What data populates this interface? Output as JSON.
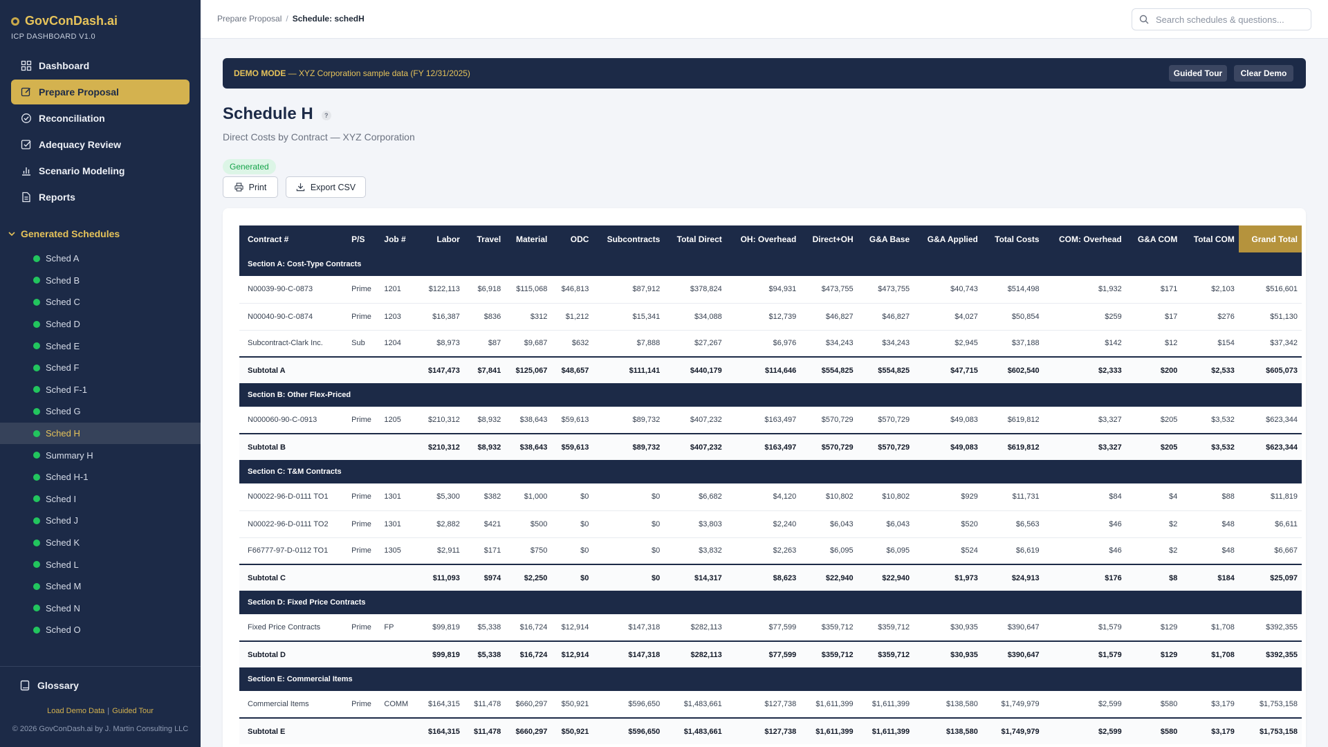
{
  "brand": {
    "name": "GovConDash.ai",
    "subtitle": "ICP DASHBOARD V1.0"
  },
  "nav": [
    {
      "label": "Dashboard",
      "icon": "grid-icon",
      "active": false
    },
    {
      "label": "Prepare Proposal",
      "icon": "edit-icon",
      "active": true
    },
    {
      "label": "Reconciliation",
      "icon": "check-circle-icon",
      "active": false
    },
    {
      "label": "Adequacy Review",
      "icon": "check-square-icon",
      "active": false
    },
    {
      "label": "Scenario Modeling",
      "icon": "bar-chart-icon",
      "active": false
    },
    {
      "label": "Reports",
      "icon": "document-icon",
      "active": false
    }
  ],
  "generated": {
    "heading": "Generated Schedules",
    "items": [
      "Sched A",
      "Sched B",
      "Sched C",
      "Sched D",
      "Sched E",
      "Sched F",
      "Sched F-1",
      "Sched G",
      "Sched H",
      "Summary H",
      "Sched H-1",
      "Sched I",
      "Sched J",
      "Sched K",
      "Sched L",
      "Sched M",
      "Sched N",
      "Sched O"
    ],
    "active_index": 8
  },
  "sidebar_bottom": {
    "glossary": "Glossary",
    "load_demo": "Load Demo Data",
    "guided_tour": "Guided Tour",
    "copyright": "© 2026 GovConDash.ai by J. Martin Consulting LLC"
  },
  "breadcrumb": {
    "parent": "Prepare Proposal",
    "current": "Schedule: schedH"
  },
  "search": {
    "placeholder": "Search schedules & questions..."
  },
  "banner": {
    "mode": "DEMO MODE",
    "text": " — XYZ Corporation sample data (FY 12/31/2025)",
    "tour_btn": "Guided Tour",
    "clear_btn": "Clear Demo"
  },
  "page": {
    "title": "Schedule H",
    "help": "?",
    "subtitle": "Direct Costs by Contract — XYZ Corporation",
    "status": "Generated",
    "print": "Print",
    "export": "Export CSV"
  },
  "table": {
    "columns": [
      "Contract #",
      "P/S",
      "Job #",
      "Labor",
      "Travel",
      "Material",
      "ODC",
      "Subcontracts",
      "Total Direct",
      "OH: Overhead",
      "Direct+OH",
      "G&A Base",
      "G&A Applied",
      "Total Costs",
      "COM: Overhead",
      "G&A COM",
      "Total COM",
      "Grand Total"
    ],
    "sections": [
      {
        "title": "Section A: Cost-Type Contracts",
        "rows": [
          [
            "N00039-90-C-0873",
            "Prime",
            "1201",
            "$122,113",
            "$6,918",
            "$115,068",
            "$46,813",
            "$87,912",
            "$378,824",
            "$94,931",
            "$473,755",
            "$473,755",
            "$40,743",
            "$514,498",
            "$1,932",
            "$171",
            "$2,103",
            "$516,601"
          ],
          [
            "N00040-90-C-0874",
            "Prime",
            "1203",
            "$16,387",
            "$836",
            "$312",
            "$1,212",
            "$15,341",
            "$34,088",
            "$12,739",
            "$46,827",
            "$46,827",
            "$4,027",
            "$50,854",
            "$259",
            "$17",
            "$276",
            "$51,130"
          ],
          [
            "Subcontract-Clark Inc.",
            "Sub",
            "1204",
            "$8,973",
            "$87",
            "$9,687",
            "$632",
            "$7,888",
            "$27,267",
            "$6,976",
            "$34,243",
            "$34,243",
            "$2,945",
            "$37,188",
            "$142",
            "$12",
            "$154",
            "$37,342"
          ]
        ],
        "subtotal": [
          "Subtotal A",
          "",
          "",
          "$147,473",
          "$7,841",
          "$125,067",
          "$48,657",
          "$111,141",
          "$440,179",
          "$114,646",
          "$554,825",
          "$554,825",
          "$47,715",
          "$602,540",
          "$2,333",
          "$200",
          "$2,533",
          "$605,073"
        ]
      },
      {
        "title": "Section B: Other Flex-Priced",
        "rows": [
          [
            "N000060-90-C-0913",
            "Prime",
            "1205",
            "$210,312",
            "$8,932",
            "$38,643",
            "$59,613",
            "$89,732",
            "$407,232",
            "$163,497",
            "$570,729",
            "$570,729",
            "$49,083",
            "$619,812",
            "$3,327",
            "$205",
            "$3,532",
            "$623,344"
          ]
        ],
        "subtotal": [
          "Subtotal B",
          "",
          "",
          "$210,312",
          "$8,932",
          "$38,643",
          "$59,613",
          "$89,732",
          "$407,232",
          "$163,497",
          "$570,729",
          "$570,729",
          "$49,083",
          "$619,812",
          "$3,327",
          "$205",
          "$3,532",
          "$623,344"
        ]
      },
      {
        "title": "Section C: T&M Contracts",
        "rows": [
          [
            "N00022-96-D-0111 TO1",
            "Prime",
            "1301",
            "$5,300",
            "$382",
            "$1,000",
            "$0",
            "$0",
            "$6,682",
            "$4,120",
            "$10,802",
            "$10,802",
            "$929",
            "$11,731",
            "$84",
            "$4",
            "$88",
            "$11,819"
          ],
          [
            "N00022-96-D-0111 TO2",
            "Prime",
            "1301",
            "$2,882",
            "$421",
            "$500",
            "$0",
            "$0",
            "$3,803",
            "$2,240",
            "$6,043",
            "$6,043",
            "$520",
            "$6,563",
            "$46",
            "$2",
            "$48",
            "$6,611"
          ],
          [
            "F66777-97-D-0112 TO1",
            "Prime",
            "1305",
            "$2,911",
            "$171",
            "$750",
            "$0",
            "$0",
            "$3,832",
            "$2,263",
            "$6,095",
            "$6,095",
            "$524",
            "$6,619",
            "$46",
            "$2",
            "$48",
            "$6,667"
          ]
        ],
        "subtotal": [
          "Subtotal C",
          "",
          "",
          "$11,093",
          "$974",
          "$2,250",
          "$0",
          "$0",
          "$14,317",
          "$8,623",
          "$22,940",
          "$22,940",
          "$1,973",
          "$24,913",
          "$176",
          "$8",
          "$184",
          "$25,097"
        ]
      },
      {
        "title": "Section D: Fixed Price Contracts",
        "rows": [
          [
            "Fixed Price Contracts",
            "Prime",
            "FP",
            "$99,819",
            "$5,338",
            "$16,724",
            "$12,914",
            "$147,318",
            "$282,113",
            "$77,599",
            "$359,712",
            "$359,712",
            "$30,935",
            "$390,647",
            "$1,579",
            "$129",
            "$1,708",
            "$392,355"
          ]
        ],
        "subtotal": [
          "Subtotal D",
          "",
          "",
          "$99,819",
          "$5,338",
          "$16,724",
          "$12,914",
          "$147,318",
          "$282,113",
          "$77,599",
          "$359,712",
          "$359,712",
          "$30,935",
          "$390,647",
          "$1,579",
          "$129",
          "$1,708",
          "$392,355"
        ]
      },
      {
        "title": "Section E: Commercial Items",
        "rows": [
          [
            "Commercial Items",
            "Prime",
            "COMM",
            "$164,315",
            "$11,478",
            "$660,297",
            "$50,921",
            "$596,650",
            "$1,483,661",
            "$127,738",
            "$1,611,399",
            "$1,611,399",
            "$138,580",
            "$1,749,979",
            "$2,599",
            "$580",
            "$3,179",
            "$1,753,158"
          ]
        ],
        "subtotal": [
          "Subtotal E",
          "",
          "",
          "$164,315",
          "$11,478",
          "$660,297",
          "$50,921",
          "$596,650",
          "$1,483,661",
          "$127,738",
          "$1,611,399",
          "$1,611,399",
          "$138,580",
          "$1,749,979",
          "$2,599",
          "$580",
          "$3,179",
          "$1,753,158"
        ]
      }
    ]
  },
  "colors": {
    "navy": "#1c2a47",
    "gold": "#d4b24f",
    "grand_total": "#b5933d",
    "status_green": "#22c55e"
  }
}
